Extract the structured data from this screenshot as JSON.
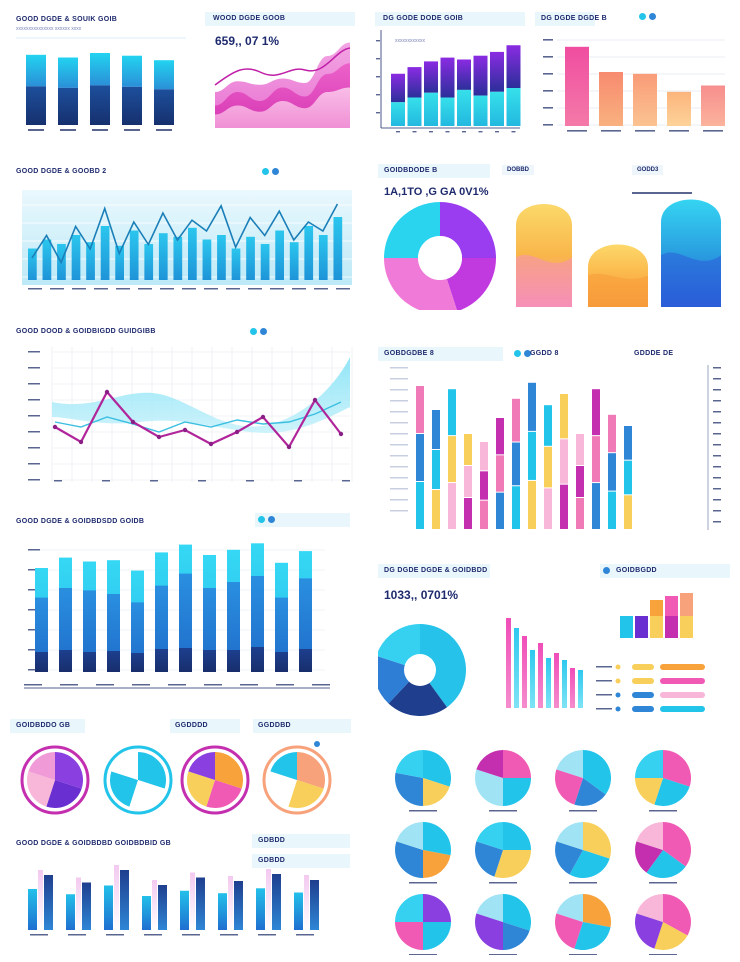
{
  "colors": {
    "navy": "#1b3a7e",
    "blue": "#2f86d6",
    "cyan": "#22c4ea",
    "sky": "#9fe3f5",
    "pink": "#f05ab4",
    "magenta": "#c42fb0",
    "purple": "#6a2fd1",
    "violet": "#8a3fe0",
    "orange": "#f7a23b",
    "yellow": "#f7cf5a",
    "peach": "#f7a27a",
    "lightpink": "#f8b6d8"
  },
  "panels": {
    "p1": {
      "title": "GOOD DGDE & SOUIK GOIB",
      "subtitle": "xxxxxxxxxxxxxxx xxxxxx xxxx"
    },
    "p2": {
      "title": "WOOD DGDE GOOB",
      "big": "659,, 07 1%"
    },
    "p3": {
      "title": "DG GODE DODE GOIB",
      "legend": "xxxxxxxxxxxx"
    },
    "p4": {
      "title": "DG DGDE DGDE B"
    },
    "p5": {
      "title": "GOOD DGDE & GOOBD 2"
    },
    "p6": {
      "title": "GOIDBDODE B",
      "big": "1A,1TO ,G GA 0V1%",
      "tag1": "DOBBD",
      "tag2": "GODD3"
    },
    "p7": {
      "title": "GOOD DOOD & GOIDBIGDD GUIDGIBB"
    },
    "p8": {
      "title": "GOBDGDBE 8",
      "tag": "GGDD 8",
      "tag2": "GDDDE DE"
    },
    "p9": {
      "title": "GOOD DGDE & GOIDBDSDD GOIDB"
    },
    "p10": {
      "title": "DG DGDE DGDE & GOIDBDD",
      "big": "1033,, 0701%",
      "tag": "GOIDBGDD"
    },
    "p11": {
      "title": "GOIDBDDO GB",
      "tag1": "GGDDDD",
      "tag2": "GGDDBD"
    },
    "p12": {
      "title": "GOOD DGDE & GOIDBDBD GOIDBDBID GB",
      "tag": "GDBDD",
      "tag2": "GDBDD"
    }
  },
  "chart_data": [
    {
      "id": "p1",
      "type": "bar",
      "categories": [
        "A",
        "B",
        "C",
        "D",
        "E"
      ],
      "values": [
        78,
        75,
        80,
        77,
        72
      ],
      "ylim": [
        0,
        100
      ]
    },
    {
      "id": "p2",
      "type": "area",
      "x": [
        0,
        1,
        2,
        3,
        4,
        5,
        6
      ],
      "series": [
        {
          "name": "a",
          "values": [
            40,
            52,
            48,
            55,
            50,
            80,
            95
          ]
        },
        {
          "name": "b",
          "values": [
            25,
            40,
            30,
            45,
            35,
            60,
            72
          ]
        },
        {
          "name": "c",
          "values": [
            15,
            25,
            18,
            30,
            22,
            40,
            45
          ]
        }
      ],
      "ylim": [
        0,
        100
      ]
    },
    {
      "id": "p3",
      "type": "bar",
      "categories": [
        "a",
        "b",
        "c",
        "d",
        "e",
        "f",
        "g",
        "h"
      ],
      "values": [
        55,
        62,
        68,
        72,
        70,
        74,
        78,
        85
      ],
      "base": [
        25,
        30,
        35,
        30,
        38,
        32,
        36,
        40
      ],
      "ylim": [
        0,
        100
      ]
    },
    {
      "id": "p4",
      "type": "bar",
      "categories": [
        "a",
        "b",
        "c",
        "d",
        "e"
      ],
      "values": [
        88,
        60,
        58,
        38,
        45
      ],
      "ylim": [
        0,
        100
      ]
    },
    {
      "id": "p5",
      "type": "line",
      "x": [
        1,
        2,
        3,
        4,
        5,
        6,
        7,
        8,
        9,
        10,
        11,
        12,
        13,
        14,
        15,
        16,
        17,
        18,
        19,
        20,
        21,
        22
      ],
      "series": [
        {
          "name": "line",
          "values": [
            30,
            55,
            25,
            65,
            40,
            85,
            35,
            70,
            45,
            80,
            50,
            72,
            60,
            88,
            42,
            75,
            55,
            82,
            50,
            70,
            60,
            90
          ]
        },
        {
          "name": "bars",
          "values": [
            35,
            45,
            40,
            50,
            42,
            60,
            38,
            55,
            40,
            52,
            48,
            58,
            45,
            50,
            35,
            48,
            40,
            55,
            42,
            60,
            50,
            70
          ]
        }
      ],
      "ylim": [
        0,
        100
      ]
    },
    {
      "id": "p6",
      "type": "pie",
      "values": [
        25,
        20,
        30,
        25
      ],
      "labels": [
        "a",
        "b",
        "c",
        "d"
      ]
    },
    {
      "id": "p7",
      "type": "line",
      "x": [
        1,
        2,
        3,
        4,
        5,
        6,
        7,
        8,
        9,
        10,
        11,
        12
      ],
      "series": [
        {
          "name": "magenta",
          "values": [
            45,
            30,
            80,
            50,
            35,
            42,
            28,
            40,
            55,
            25,
            72,
            38
          ]
        },
        {
          "name": "teal",
          "values": [
            50,
            45,
            55,
            48,
            40,
            50,
            45,
            52,
            48,
            50,
            58,
            70
          ]
        }
      ],
      "ylim": [
        0,
        100
      ]
    },
    {
      "id": "p8",
      "type": "bar",
      "categories": [
        "1",
        "2",
        "3",
        "4",
        "5",
        "6",
        "7",
        "8",
        "9",
        "10",
        "11",
        "12",
        "13",
        "14"
      ],
      "values": [
        90,
        75,
        88,
        60,
        55,
        70,
        82,
        92,
        78,
        85,
        60,
        88,
        72,
        65
      ],
      "ylim": [
        0,
        100
      ]
    },
    {
      "id": "p9",
      "type": "bar",
      "categories": [
        "a",
        "b",
        "c",
        "d",
        "e",
        "f",
        "g",
        "h",
        "i",
        "j",
        "k",
        "l"
      ],
      "values": [
        62,
        70,
        68,
        65,
        58,
        72,
        82,
        70,
        75,
        80,
        62,
        78
      ],
      "series": [
        {
          "name": "top",
          "values": [
            80,
            88,
            85,
            86,
            78,
            92,
            98,
            90,
            94,
            99,
            84,
            93
          ]
        },
        {
          "name": "mid",
          "values": [
            62,
            70,
            68,
            65,
            58,
            72,
            82,
            70,
            75,
            80,
            62,
            78
          ]
        },
        {
          "name": "base",
          "values": [
            20,
            22,
            20,
            21,
            19,
            23,
            24,
            22,
            22,
            25,
            20,
            23
          ]
        }
      ],
      "ylim": [
        0,
        100
      ]
    },
    {
      "id": "p10",
      "type": "pie",
      "values": [
        40,
        22,
        18,
        20
      ],
      "labels": [
        "a",
        "b",
        "c",
        "d"
      ]
    },
    {
      "id": "p11",
      "type": "pie",
      "values": [
        30,
        25,
        25,
        20
      ],
      "labels": [
        "a",
        "b",
        "c",
        "d"
      ]
    },
    {
      "id": "p12",
      "type": "bar",
      "categories": [
        "a",
        "b",
        "c",
        "d",
        "e",
        "f",
        "g",
        "h"
      ],
      "values": [
        60,
        45,
        70,
        40,
        55,
        48,
        62,
        50
      ],
      "ylim": [
        0,
        100
      ]
    }
  ]
}
